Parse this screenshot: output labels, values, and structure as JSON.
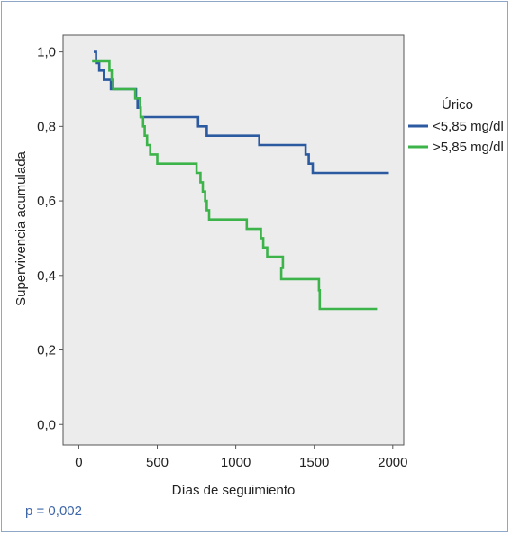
{
  "chart_data": {
    "type": "line",
    "subtype": "kaplan-meier",
    "xlabel": "Días de seguimiento",
    "ylabel": "Supervivencia acumulada",
    "xlim": [
      -100,
      2070
    ],
    "ylim": [
      -0.055,
      1.045
    ],
    "x_ticks": [
      0,
      500,
      1000,
      1500,
      2000
    ],
    "x_tick_labels": [
      "0",
      "500",
      "1000",
      "1500",
      "2000"
    ],
    "y_ticks": [
      0.0,
      0.2,
      0.4,
      0.6,
      0.8,
      1.0
    ],
    "y_tick_labels": [
      "0,0",
      "0,2",
      "0,4",
      "0,6",
      "0,8",
      "1,0"
    ],
    "grid": false,
    "plot_background": "#ececec",
    "legend": {
      "title": "Úrico",
      "position": "right"
    },
    "series": [
      {
        "name": "<5,85 mg/dl",
        "color": "#2c5aa0",
        "points": [
          [
            95,
            1.0
          ],
          [
            110,
            0.97
          ],
          [
            130,
            0.95
          ],
          [
            160,
            0.925
          ],
          [
            205,
            0.9
          ],
          [
            365,
            0.875
          ],
          [
            375,
            0.85
          ],
          [
            395,
            0.825
          ],
          [
            760,
            0.8
          ],
          [
            815,
            0.775
          ],
          [
            1150,
            0.75
          ],
          [
            1445,
            0.725
          ],
          [
            1465,
            0.7
          ],
          [
            1490,
            0.675
          ],
          [
            1975,
            0.675
          ]
        ]
      },
      {
        "name": ">5,85 mg/dl",
        "color": "#3cb44a",
        "points": [
          [
            85,
            0.975
          ],
          [
            195,
            0.95
          ],
          [
            210,
            0.925
          ],
          [
            220,
            0.9
          ],
          [
            360,
            0.875
          ],
          [
            390,
            0.85
          ],
          [
            395,
            0.825
          ],
          [
            410,
            0.8
          ],
          [
            420,
            0.775
          ],
          [
            435,
            0.75
          ],
          [
            455,
            0.725
          ],
          [
            500,
            0.7
          ],
          [
            750,
            0.675
          ],
          [
            775,
            0.65
          ],
          [
            790,
            0.625
          ],
          [
            805,
            0.6
          ],
          [
            815,
            0.575
          ],
          [
            830,
            0.55
          ],
          [
            1070,
            0.525
          ],
          [
            1160,
            0.5
          ],
          [
            1175,
            0.475
          ],
          [
            1200,
            0.45
          ],
          [
            1300,
            0.42
          ],
          [
            1290,
            0.39
          ],
          [
            1530,
            0.36
          ],
          [
            1535,
            0.31
          ],
          [
            1900,
            0.31
          ]
        ]
      }
    ]
  },
  "annotations": {
    "p_value": "p = 0,002"
  }
}
